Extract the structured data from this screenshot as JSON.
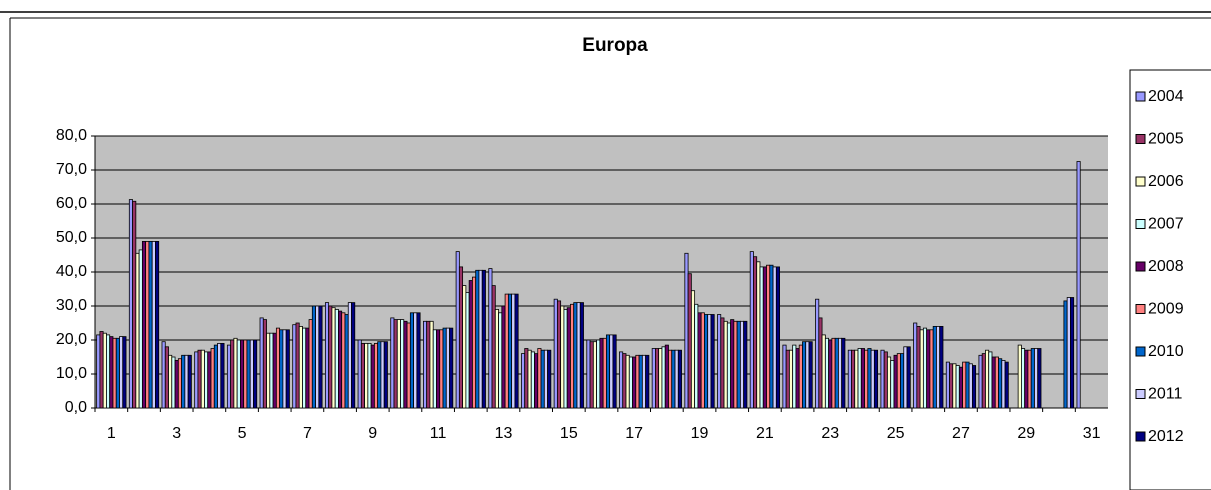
{
  "chart_data": {
    "type": "bar",
    "title": "Europa",
    "categories": [
      "1",
      null,
      "3",
      null,
      "5",
      null,
      "7",
      null,
      "9",
      null,
      "11",
      null,
      "13",
      null,
      "15",
      null,
      "17",
      null,
      "19",
      null,
      "21",
      null,
      "23",
      null,
      "25",
      null,
      "27",
      null,
      "29",
      null,
      "31"
    ],
    "ylim": [
      0,
      80
    ],
    "yticks": [
      {
        "value": 0,
        "label": "0,0"
      },
      {
        "value": 10,
        "label": "10,0"
      },
      {
        "value": 20,
        "label": "20,0"
      },
      {
        "value": 30,
        "label": "30,0"
      },
      {
        "value": 40,
        "label": "40,0"
      },
      {
        "value": 50,
        "label": "50,0"
      },
      {
        "value": 60,
        "label": "60,0"
      },
      {
        "value": 70,
        "label": "70,0"
      },
      {
        "value": 80,
        "label": "80,0"
      }
    ],
    "grid": true,
    "legend": "right",
    "series": [
      {
        "name": "2004",
        "color": "#9999ff",
        "values": [
          21.5,
          61.3,
          19.5,
          16.5,
          18.5,
          26.5,
          24.5,
          31,
          20,
          26.5,
          25.5,
          46,
          41,
          16,
          32,
          20,
          16.5,
          17.5,
          45.5,
          27.5,
          46,
          18.5,
          32,
          17,
          17,
          25,
          13.5,
          15.5,
          null,
          null,
          72.5
        ]
      },
      {
        "name": "2005",
        "color": "#993366",
        "values": [
          22.5,
          60.8,
          18,
          17,
          20,
          26,
          25,
          30,
          19,
          26,
          25.5,
          41.5,
          36,
          17.5,
          31.5,
          19.5,
          16,
          17.5,
          39.5,
          26.5,
          44.5,
          17,
          26.5,
          17,
          16.5,
          24,
          13,
          16,
          null,
          null,
          null
        ]
      },
      {
        "name": "2006",
        "color": "#ffffcc",
        "values": [
          22,
          45.5,
          15.5,
          17,
          20.5,
          22,
          24,
          29.5,
          19,
          26,
          25.5,
          36,
          29,
          17,
          30,
          19.5,
          15.5,
          17.5,
          34.5,
          25.5,
          43,
          17,
          21.5,
          17,
          15,
          23,
          13,
          17,
          18.5,
          null,
          null
        ]
      },
      {
        "name": "2007",
        "color": "#ccffff",
        "values": [
          21.5,
          46.5,
          15,
          16.5,
          20,
          22,
          23.5,
          29,
          19,
          26,
          23,
          34,
          28,
          16.5,
          29,
          20,
          15,
          18,
          30.5,
          25,
          41.5,
          18.5,
          20.5,
          17.5,
          14,
          23.5,
          12.5,
          16.5,
          17.5,
          null,
          null
        ]
      },
      {
        "name": "2008",
        "color": "#660066",
        "values": [
          21,
          49,
          14,
          16.5,
          20,
          22,
          23.5,
          28.5,
          18.5,
          25.5,
          23,
          37.5,
          30,
          16,
          29.5,
          20.5,
          15,
          18.5,
          28,
          26,
          41.5,
          17.5,
          20,
          17.5,
          15.5,
          23,
          12,
          15,
          17,
          null,
          null
        ]
      },
      {
        "name": "2009",
        "color": "#ff8080",
        "values": [
          20.5,
          49,
          14.5,
          17.5,
          20,
          23.5,
          26,
          28,
          19,
          25,
          23,
          38.5,
          33.5,
          17.5,
          30.5,
          20.5,
          15.5,
          17,
          28,
          25.5,
          42,
          18.5,
          20.5,
          17,
          16,
          23,
          13.5,
          15,
          17,
          null,
          null
        ]
      },
      {
        "name": "2010",
        "color": "#0066cc",
        "values": [
          20.5,
          49,
          15.5,
          18.5,
          20,
          23,
          30,
          27.5,
          19.5,
          28,
          23.5,
          40.5,
          33.5,
          17,
          31,
          21.5,
          15.5,
          17,
          27.5,
          25.5,
          42,
          19.5,
          20.5,
          17.5,
          16,
          24,
          13.5,
          14.5,
          17.5,
          31.5,
          null
        ]
      },
      {
        "name": "2011",
        "color": "#ccccff",
        "values": [
          21,
          49,
          15.5,
          19,
          20,
          23,
          30,
          31,
          19.5,
          28,
          23.5,
          40.5,
          33.5,
          17,
          31,
          21.5,
          15.5,
          17,
          27.5,
          25.5,
          41.5,
          19.5,
          20.5,
          17,
          18,
          24,
          13,
          14,
          17.5,
          32.5,
          null
        ]
      },
      {
        "name": "2012",
        "color": "#000080",
        "values": [
          21,
          49,
          15.5,
          19,
          20,
          23,
          30,
          31,
          19.5,
          28,
          23.5,
          40.5,
          33.5,
          17,
          31,
          21.5,
          15.5,
          17,
          27.5,
          25.5,
          41.5,
          19.5,
          20.5,
          17,
          18,
          24,
          12.5,
          13.5,
          17.5,
          32.5,
          null
        ]
      }
    ]
  }
}
